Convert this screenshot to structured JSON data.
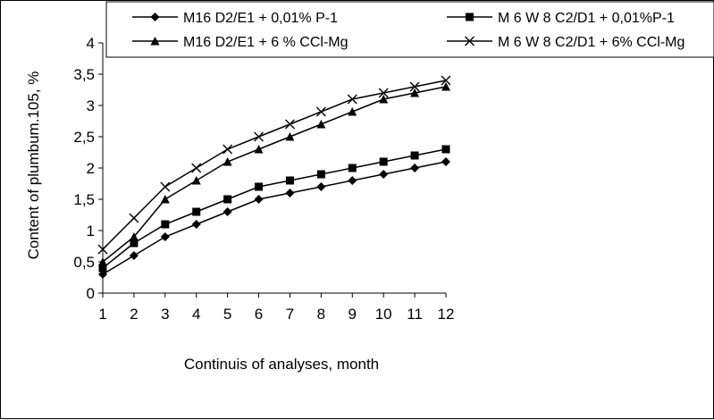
{
  "chart_data": {
    "type": "line",
    "title": "",
    "xlabel": "Continuis of analyses, month",
    "ylabel": "Content of plumbum.105, %",
    "categories": [
      "1",
      "2",
      "3",
      "4",
      "5",
      "6",
      "7",
      "8",
      "9",
      "10",
      "11",
      "12"
    ],
    "x_ticks": [
      "1",
      "2",
      "3",
      "4",
      "5",
      "6",
      "7",
      "8",
      "9",
      "10",
      "11",
      "12"
    ],
    "y_ticks": [
      "0",
      "0,5",
      "1",
      "1,5",
      "2",
      "2,5",
      "3",
      "3,5",
      "4"
    ],
    "ylim": [
      0,
      4
    ],
    "grid": false,
    "legend_position": "top",
    "series": [
      {
        "name": "M16 D2/E1 + 0,01% P-1",
        "marker": "diamond",
        "color": "#000000",
        "values": [
          0.3,
          0.6,
          0.9,
          1.1,
          1.3,
          1.5,
          1.6,
          1.7,
          1.8,
          1.9,
          2.0,
          2.1
        ]
      },
      {
        "name": "M 6 W 8 C2/D1 + 0,01%P-1",
        "marker": "square",
        "color": "#000000",
        "values": [
          0.4,
          0.8,
          1.1,
          1.3,
          1.5,
          1.7,
          1.8,
          1.9,
          2.0,
          2.1,
          2.2,
          2.3
        ]
      },
      {
        "name": "M16 D2/E1 + 6 % CCl-Mg",
        "marker": "triangle",
        "color": "#000000",
        "values": [
          0.5,
          0.9,
          1.5,
          1.8,
          2.1,
          2.3,
          2.5,
          2.7,
          2.9,
          3.1,
          3.2,
          3.3
        ]
      },
      {
        "name": "M 6 W 8 C2/D1 + 6% CCl-Mg",
        "marker": "x",
        "color": "#000000",
        "values": [
          0.7,
          1.2,
          1.7,
          2.0,
          2.3,
          2.5,
          2.7,
          2.9,
          3.1,
          3.2,
          3.3,
          3.4
        ]
      }
    ]
  }
}
